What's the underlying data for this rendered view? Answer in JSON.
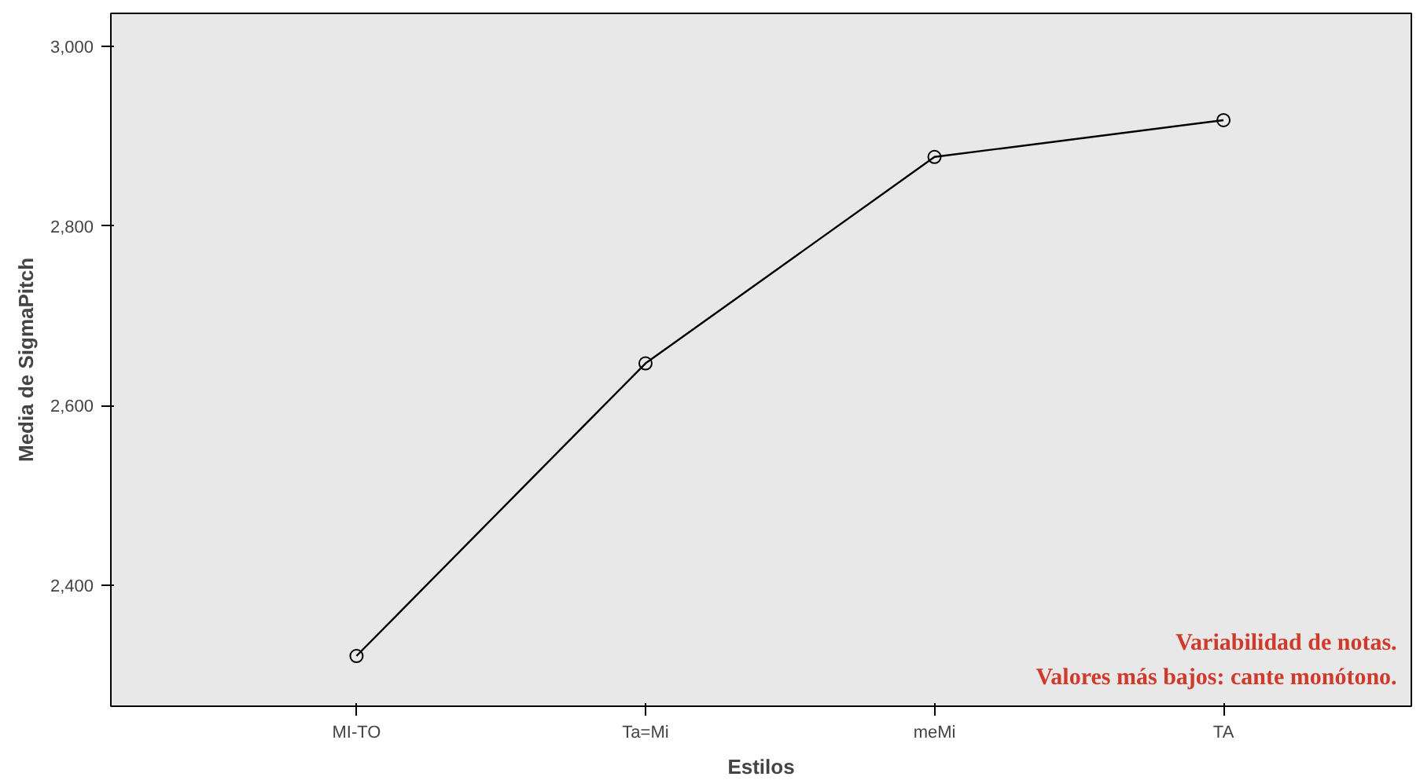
{
  "chart_data": {
    "type": "line",
    "xlabel": "Estilos",
    "ylabel": "Media de SigmaPitch",
    "categories": [
      "MI-TO",
      "Ta=Mi",
      "meMi",
      "TA"
    ],
    "series": [
      {
        "color": "#000000",
        "values": [
          2321,
          2647,
          2877,
          2918
        ]
      }
    ],
    "ylim": [
      2265,
      3037
    ],
    "yticks": [
      {
        "value": 2400,
        "label": "2,400"
      },
      {
        "value": 2600,
        "label": "2,600"
      },
      {
        "value": 2800,
        "label": "2,800"
      },
      {
        "value": 3000,
        "label": "3,000"
      }
    ],
    "marker": "circle",
    "line_style": "solid",
    "annotations": [
      "Variabilidad de notas.",
      "Valores más bajos: cante monótono."
    ]
  }
}
